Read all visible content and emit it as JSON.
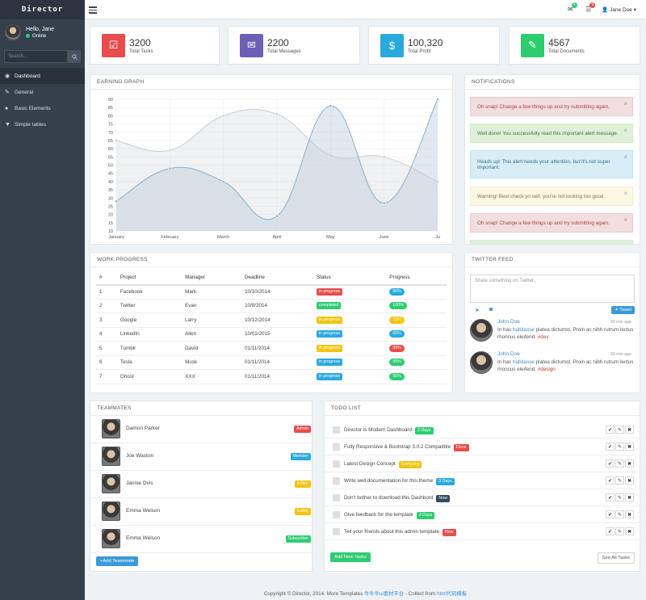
{
  "brand": "Director",
  "user": {
    "greeting": "Hello, Jane",
    "status": "Online"
  },
  "sidebar": {
    "search_placeholder": "Search...",
    "items": [
      {
        "label": "Dashboard",
        "icon": "dashboard-icon"
      },
      {
        "label": "General",
        "icon": "wrench-icon"
      },
      {
        "label": "Basic Elements",
        "icon": "globe-icon"
      },
      {
        "label": "Simple tables",
        "icon": "filter-icon"
      }
    ]
  },
  "topbar": {
    "mail_count": "4",
    "tasks_count": "9",
    "user": "Jane Doe"
  },
  "stats": [
    {
      "value": "3200",
      "label": "Total Tasks",
      "color": "#e84c4c",
      "icon": "check-icon"
    },
    {
      "value": "2200",
      "label": "Total Messages",
      "color": "#6c5fb5",
      "icon": "envelope-icon"
    },
    {
      "value": "100,320",
      "label": "Total Profit",
      "color": "#2aa9df",
      "icon": "dollar-icon"
    },
    {
      "value": "4567",
      "label": "Total Documents",
      "color": "#2ecc71",
      "icon": "paperclip-icon"
    }
  ],
  "earning": {
    "title": "EARNING GRAPH",
    "chart_data": {
      "type": "area",
      "categories": [
        "January",
        "February",
        "March",
        "April",
        "May",
        "June",
        "Ju"
      ],
      "ylim": [
        10,
        90
      ],
      "yticks": [
        "90",
        "85",
        "80",
        "75",
        "70",
        "65",
        "60",
        "55",
        "50",
        "45",
        "40",
        "35",
        "30",
        "25",
        "20",
        "15",
        "10"
      ],
      "series": [
        {
          "values": [
            65,
            59,
            80,
            81,
            56,
            55,
            40
          ],
          "color": "#c8cdd2"
        },
        {
          "values": [
            28,
            48,
            40,
            19,
            86,
            27,
            90
          ],
          "color": "#8ab0c9"
        }
      ]
    }
  },
  "notifications": {
    "title": "NOTIFICATIONS",
    "items": [
      {
        "type": "danger",
        "text": "Oh snap! Change a few things up and try submitting again."
      },
      {
        "type": "success",
        "text": "Well done! You successfully read this important alert message."
      },
      {
        "type": "info",
        "text": "Heads up! This alert needs your attention, but it's not super important."
      },
      {
        "type": "warning",
        "text": "Warning! Best check yo self, you're not looking too good."
      },
      {
        "type": "danger",
        "text": "Oh snap! Change a few things up and try submitting again."
      },
      {
        "type": "success",
        "text": ""
      }
    ]
  },
  "work": {
    "title": "WORK PROGRESS",
    "headers": [
      "#",
      "Project",
      "Manager",
      "Deadline",
      "Status",
      "Progress"
    ],
    "rows": [
      {
        "n": "1",
        "project": "Facebook",
        "manager": "Mark",
        "deadline": "10/10/2014",
        "status": "in progress",
        "status_color": "#e84c4c",
        "progress": "50%",
        "progress_color": "#2aa9df"
      },
      {
        "n": "2",
        "project": "Twitter",
        "manager": "Evan",
        "deadline": "10/8/2014",
        "status": "completed",
        "status_color": "#2ecc71",
        "progress": "100%",
        "progress_color": "#2ecc71"
      },
      {
        "n": "3",
        "project": "Google",
        "manager": "Larry",
        "deadline": "10/12/2014",
        "status": "in progress",
        "status_color": "#f1c40f",
        "progress": "75%",
        "progress_color": "#f1c40f"
      },
      {
        "n": "4",
        "project": "LinkedIn",
        "manager": "Allen",
        "deadline": "10/01/2015",
        "status": "in progress",
        "status_color": "#2aa9df",
        "progress": "65%",
        "progress_color": "#2aa9df"
      },
      {
        "n": "5",
        "project": "Tumblr",
        "manager": "David",
        "deadline": "01/11/2014",
        "status": "in progress",
        "status_color": "#f1c40f",
        "progress": "95%",
        "progress_color": "#e84c4c"
      },
      {
        "n": "6",
        "project": "Tesla",
        "manager": "Musk",
        "deadline": "01/11/2014",
        "status": "in progress",
        "status_color": "#2aa9df",
        "progress": "95%",
        "progress_color": "#2ecc71"
      },
      {
        "n": "7",
        "project": "Ghost",
        "manager": "XXX",
        "deadline": "01/11/2014",
        "status": "in progress",
        "status_color": "#2aa9df",
        "progress": "95%",
        "progress_color": "#2ecc71"
      }
    ]
  },
  "twitter": {
    "title": "TWITTER FEED",
    "placeholder": "Share something on Twitter..",
    "tweet_button": "Tweet",
    "tweets": [
      {
        "name": "John Doe",
        "time": "30 min ago",
        "pre": "In hac ",
        "link": "habitasse",
        "post": " platea dictumst. Proin ac nibh rutrum lectus rhoncus eleifend. ",
        "tag": "#dev"
      },
      {
        "name": "John Doe",
        "time": "30 min ago",
        "pre": "In hac ",
        "link": "habitasse",
        "post": " platea dictumst. Proin ac nibh rutrum lectus rhoncus eleifend. ",
        "tag": "#design"
      }
    ]
  },
  "teammates": {
    "title": "TEAMMATES",
    "add_button": "Add Teammate",
    "members": [
      {
        "name": "Damon Parker",
        "role": "Admin",
        "color": "#e84c4c"
      },
      {
        "name": "Joe Waston",
        "role": "Member",
        "color": "#2aa9df"
      },
      {
        "name": "Jannie Dvis",
        "role": "Editor",
        "color": "#f1c40f"
      },
      {
        "name": "Emma Welson",
        "role": "Editor",
        "color": "#f1c40f"
      },
      {
        "name": "Emma Welson",
        "role": "Subscriber",
        "color": "#2ecc71"
      }
    ]
  },
  "todo": {
    "title": "TODO LIST",
    "add_button": "Add New Tasks",
    "see_all": "See All Tasks",
    "items": [
      {
        "text": "Director is Modern Dashboard",
        "badge": "2 Days",
        "color": "#2ecc71"
      },
      {
        "text": "Fully Responsive & Bootstrap 3.0.2 Compatible",
        "badge": "Done",
        "color": "#e84c4c"
      },
      {
        "text": "Latest Design Concept",
        "badge": "Company",
        "color": "#f1c40f"
      },
      {
        "text": "Write well documentation for this theme",
        "badge": "3 Days",
        "color": "#2aa9df"
      },
      {
        "text": "Don't bother to download this Dashbord",
        "badge": "Now",
        "color": "#34495e"
      },
      {
        "text": "Give feedback for the template",
        "badge": "2 Days",
        "color": "#2ecc71"
      },
      {
        "text": "Tell your friends about this admin template",
        "badge": "Now",
        "color": "#e84c4c"
      }
    ]
  },
  "footer": {
    "pre": "Copyright © Director, 2014. More Templates ",
    "link1": "牛牛牛ui素材平台",
    "mid": " - Collect from ",
    "link2": "html代码模板"
  }
}
